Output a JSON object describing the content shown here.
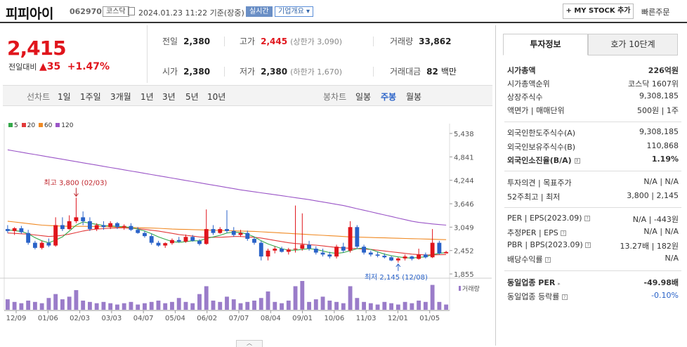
{
  "header": {
    "title": "피피아이",
    "code": "062970",
    "market": "코스닥",
    "datetime": "2024.01.23 11:22 기준(장중)",
    "realtime_tag": "실시간",
    "company_tag": "기업개요",
    "mystock_label": "+ MY STOCK 추가",
    "quick_order": "빠른주문"
  },
  "price": {
    "current": "2,415",
    "change_label": "전일대비",
    "change": "35",
    "change_pct": "+1.47%"
  },
  "stats": {
    "prev_label": "전일",
    "prev": "2,380",
    "high_label": "고가",
    "high": "2,445",
    "upper_limit": "(상한가 3,090)",
    "volume_label": "거래량",
    "volume": "33,862",
    "open_label": "시가",
    "open": "2,380",
    "low_label": "저가",
    "low": "2,380",
    "lower_limit": "(하한가 1,670)",
    "amount_label": "거래대금",
    "amount": "82",
    "amount_unit": "백만"
  },
  "period_bar": {
    "line_label": "선차트",
    "line_periods": [
      "1일",
      "1주일",
      "3개월",
      "1년",
      "3년",
      "5년",
      "10년"
    ],
    "candle_label": "봉차트",
    "candle_periods": [
      "일봉",
      "주봉",
      "월봉"
    ],
    "selected": "주봉"
  },
  "chart_data": {
    "type": "candlestick",
    "legend": [
      "5",
      "20",
      "60",
      "120"
    ],
    "ma_colors": {
      "5": "#35a84a",
      "20": "#e23a3a",
      "60": "#f08a24",
      "120": "#9a55c7"
    },
    "up_color": "#e0151c",
    "down_color": "#2962c8",
    "y_ticks": [
      "5,438",
      "4,841",
      "4,244",
      "3,646",
      "3,049",
      "2,452",
      "1,855"
    ],
    "ylim": [
      1855,
      5438
    ],
    "x_ticks": [
      "12/09",
      "01/06",
      "02/03",
      "03/03",
      "04/07",
      "05/04",
      "06/02",
      "07/07",
      "08/04",
      "09/01",
      "10/06",
      "11/03",
      "12/01",
      "01/05"
    ],
    "annotation_high": "최고 3,800 (02/03)",
    "annotation_low": "최저 2,145 (12/08)",
    "volume_label": "거래량",
    "candles": [
      {
        "o": 3000,
        "h": 3100,
        "l": 2900,
        "c": 2950
      },
      {
        "o": 2950,
        "h": 3050,
        "l": 2850,
        "c": 3020
      },
      {
        "o": 3020,
        "h": 3080,
        "l": 2880,
        "c": 2920
      },
      {
        "o": 2900,
        "h": 2980,
        "l": 2600,
        "c": 2650
      },
      {
        "o": 2650,
        "h": 2700,
        "l": 2480,
        "c": 2520
      },
      {
        "o": 2520,
        "h": 2700,
        "l": 2480,
        "c": 2650
      },
      {
        "o": 2650,
        "h": 2760,
        "l": 2540,
        "c": 2580
      },
      {
        "o": 2580,
        "h": 3300,
        "l": 2550,
        "c": 3100
      },
      {
        "o": 3100,
        "h": 3300,
        "l": 2950,
        "c": 3000
      },
      {
        "o": 3000,
        "h": 3350,
        "l": 2980,
        "c": 3200
      },
      {
        "o": 3200,
        "h": 3800,
        "l": 3150,
        "c": 3300
      },
      {
        "o": 3300,
        "h": 3450,
        "l": 3100,
        "c": 3200
      },
      {
        "o": 3200,
        "h": 3300,
        "l": 2950,
        "c": 3000
      },
      {
        "o": 3000,
        "h": 3150,
        "l": 2950,
        "c": 3100
      },
      {
        "o": 3100,
        "h": 3200,
        "l": 2980,
        "c": 3050
      },
      {
        "o": 3050,
        "h": 3200,
        "l": 3000,
        "c": 3150
      },
      {
        "o": 3150,
        "h": 3180,
        "l": 3000,
        "c": 3050
      },
      {
        "o": 3050,
        "h": 3120,
        "l": 2980,
        "c": 3080
      },
      {
        "o": 3080,
        "h": 3150,
        "l": 2950,
        "c": 2980
      },
      {
        "o": 2980,
        "h": 3050,
        "l": 2880,
        "c": 2900
      },
      {
        "o": 2900,
        "h": 2950,
        "l": 2780,
        "c": 2820
      },
      {
        "o": 2820,
        "h": 2880,
        "l": 2600,
        "c": 2650
      },
      {
        "o": 2650,
        "h": 2700,
        "l": 2550,
        "c": 2580
      },
      {
        "o": 2580,
        "h": 2660,
        "l": 2520,
        "c": 2640
      },
      {
        "o": 2640,
        "h": 2760,
        "l": 2600,
        "c": 2720
      },
      {
        "o": 2720,
        "h": 2800,
        "l": 2650,
        "c": 2680
      },
      {
        "o": 2680,
        "h": 2860,
        "l": 2650,
        "c": 2800
      },
      {
        "o": 2800,
        "h": 2850,
        "l": 2680,
        "c": 2700
      },
      {
        "o": 2700,
        "h": 2740,
        "l": 2580,
        "c": 2620
      },
      {
        "o": 2620,
        "h": 3500,
        "l": 2600,
        "c": 3000
      },
      {
        "o": 3000,
        "h": 3100,
        "l": 2850,
        "c": 2900
      },
      {
        "o": 2900,
        "h": 3050,
        "l": 2880,
        "c": 3000
      },
      {
        "o": 3000,
        "h": 3480,
        "l": 2900,
        "c": 2950
      },
      {
        "o": 2950,
        "h": 3050,
        "l": 2800,
        "c": 2850
      },
      {
        "o": 2850,
        "h": 2980,
        "l": 2800,
        "c": 2900
      },
      {
        "o": 2900,
        "h": 2960,
        "l": 2700,
        "c": 2750
      },
      {
        "o": 2750,
        "h": 2800,
        "l": 2600,
        "c": 2650
      },
      {
        "o": 2650,
        "h": 2700,
        "l": 2200,
        "c": 2300
      },
      {
        "o": 2300,
        "h": 2500,
        "l": 2200,
        "c": 2450
      },
      {
        "o": 2450,
        "h": 2560,
        "l": 2380,
        "c": 2500
      },
      {
        "o": 2500,
        "h": 2550,
        "l": 2400,
        "c": 2420
      },
      {
        "o": 2420,
        "h": 2520,
        "l": 2350,
        "c": 2480
      },
      {
        "o": 2480,
        "h": 3600,
        "l": 2400,
        "c": 2500
      },
      {
        "o": 2500,
        "h": 3400,
        "l": 2450,
        "c": 2600
      },
      {
        "o": 2600,
        "h": 2700,
        "l": 2450,
        "c": 2500
      },
      {
        "o": 2500,
        "h": 2560,
        "l": 2350,
        "c": 2400
      },
      {
        "o": 2400,
        "h": 2500,
        "l": 2300,
        "c": 2350
      },
      {
        "o": 2350,
        "h": 2420,
        "l": 2250,
        "c": 2300
      },
      {
        "o": 2300,
        "h": 2600,
        "l": 2250,
        "c": 2550
      },
      {
        "o": 2550,
        "h": 2650,
        "l": 2400,
        "c": 2450
      },
      {
        "o": 2450,
        "h": 3200,
        "l": 2400,
        "c": 3050
      },
      {
        "o": 3050,
        "h": 3100,
        "l": 2500,
        "c": 2550
      },
      {
        "o": 2550,
        "h": 2600,
        "l": 2350,
        "c": 2400
      },
      {
        "o": 2400,
        "h": 2450,
        "l": 2300,
        "c": 2350
      },
      {
        "o": 2350,
        "h": 2420,
        "l": 2280,
        "c": 2320
      },
      {
        "o": 2320,
        "h": 2380,
        "l": 2250,
        "c": 2280
      },
      {
        "o": 2280,
        "h": 2320,
        "l": 2180,
        "c": 2200
      },
      {
        "o": 2200,
        "h": 2280,
        "l": 2145,
        "c": 2250
      },
      {
        "o": 2250,
        "h": 2350,
        "l": 2200,
        "c": 2300
      },
      {
        "o": 2300,
        "h": 2320,
        "l": 2200,
        "c": 2240
      },
      {
        "o": 2240,
        "h": 2500,
        "l": 2220,
        "c": 2350
      },
      {
        "o": 2350,
        "h": 2400,
        "l": 2250,
        "c": 2280
      },
      {
        "o": 2280,
        "h": 3000,
        "l": 2260,
        "c": 2650
      },
      {
        "o": 2650,
        "h": 2700,
        "l": 2350,
        "c": 2380
      },
      {
        "o": 2380,
        "h": 2445,
        "l": 2380,
        "c": 2415
      }
    ],
    "ma5": [
      2980,
      2960,
      2940,
      2880,
      2780,
      2700,
      2650,
      2720,
      2800,
      2950,
      3100,
      3180,
      3150,
      3120,
      3090,
      3080,
      3070,
      3060,
      3040,
      3000,
      2950,
      2880,
      2800,
      2740,
      2680,
      2660,
      2680,
      2700,
      2700,
      2760,
      2800,
      2840,
      2900,
      2920,
      2910,
      2870,
      2800,
      2700,
      2620,
      2560,
      2500,
      2460,
      2460,
      2480,
      2500,
      2480,
      2440,
      2400,
      2380,
      2400,
      2450,
      2500,
      2520,
      2480,
      2420,
      2360,
      2320,
      2290,
      2270,
      2260,
      2280,
      2290,
      2350,
      2380,
      2400
    ],
    "ma20": [
      2900,
      2890,
      2880,
      2870,
      2850,
      2830,
      2810,
      2820,
      2840,
      2870,
      2910,
      2950,
      2980,
      3000,
      3010,
      3020,
      3030,
      3030,
      3020,
      3010,
      2990,
      2970,
      2950,
      2920,
      2890,
      2860,
      2840,
      2820,
      2800,
      2790,
      2790,
      2790,
      2800,
      2810,
      2810,
      2800,
      2790,
      2770,
      2740,
      2710,
      2680,
      2650,
      2630,
      2620,
      2600,
      2590,
      2570,
      2550,
      2530,
      2520,
      2510,
      2500,
      2490,
      2480,
      2460,
      2440,
      2420,
      2400,
      2380,
      2360,
      2350,
      2340,
      2340,
      2345,
      2350
    ],
    "ma60": [
      3200,
      3180,
      3160,
      3140,
      3120,
      3100,
      3090,
      3080,
      3075,
      3070,
      3070,
      3070,
      3068,
      3065,
      3060,
      3055,
      3050,
      3045,
      3040,
      3035,
      3030,
      3025,
      3020,
      3010,
      3000,
      2995,
      2990,
      2985,
      2980,
      2975,
      2970,
      2965,
      2960,
      2955,
      2950,
      2945,
      2940,
      2930,
      2920,
      2910,
      2900,
      2890,
      2880,
      2870,
      2860,
      2850,
      2840,
      2830,
      2820,
      2810,
      2800,
      2795,
      2790,
      2785,
      2780,
      2775,
      2770,
      2765,
      2760,
      2755,
      2750,
      2745,
      2740,
      2735,
      2730
    ],
    "ma120": [
      5020,
      4990,
      4960,
      4930,
      4900,
      4870,
      4840,
      4810,
      4780,
      4750,
      4720,
      4690,
      4660,
      4630,
      4600,
      4570,
      4540,
      4510,
      4480,
      4450,
      4420,
      4390,
      4360,
      4330,
      4300,
      4270,
      4240,
      4210,
      4180,
      4150,
      4120,
      4090,
      4060,
      4030,
      4000,
      3975,
      3950,
      3925,
      3900,
      3875,
      3850,
      3825,
      3800,
      3775,
      3750,
      3720,
      3690,
      3660,
      3630,
      3600,
      3560,
      3520,
      3480,
      3440,
      3400,
      3360,
      3320,
      3280,
      3240,
      3200,
      3170,
      3150,
      3130,
      3115,
      3100
    ],
    "volumes": [
      8,
      6,
      5,
      7,
      6,
      5,
      9,
      12,
      8,
      10,
      15,
      7,
      6,
      5,
      6,
      5,
      4,
      5,
      6,
      4,
      5,
      6,
      7,
      5,
      6,
      9,
      6,
      5,
      12,
      18,
      7,
      6,
      10,
      8,
      5,
      6,
      7,
      9,
      14,
      6,
      5,
      7,
      18,
      22,
      6,
      8,
      10,
      7,
      6,
      5,
      18,
      9,
      6,
      5,
      4,
      6,
      5,
      4,
      6,
      5,
      7,
      6,
      19,
      6,
      4
    ]
  },
  "side": {
    "tab_active": "투자정보",
    "tab_other": "호가 10단계",
    "market_cap_label": "시가총액",
    "market_cap": "226억원",
    "rank_label": "시가총액순위",
    "rank": "코스닥 1607위",
    "shares_label": "상장주식수",
    "shares": "9,308,185",
    "par_label": "액면가",
    "unit_label": "매매단위",
    "par": "500원",
    "unit": "1주",
    "foreign_limit_label": "외국인한도주식수(A)",
    "foreign_limit": "9,308,185",
    "foreign_hold_label": "외국인보유주식수(B)",
    "foreign_hold": "110,868",
    "foreign_rate_label": "외국인소진율(B/A)",
    "foreign_rate": "1.19%",
    "opinion_label": "투자의견",
    "target_label": "목표주가",
    "opinion": "N/A",
    "target": "N/A",
    "w52_high_label": "52주최고",
    "w52_low_label": "최저",
    "w52_high": "3,800",
    "w52_low": "2,145",
    "per_label": "PER",
    "eps_label": "EPS(2023.09)",
    "per": "N/A",
    "eps": "-443원",
    "est_per_label": "추정PER",
    "est_eps_label": "EPS",
    "est_per": "N/A",
    "est_eps": "N/A",
    "pbr_label": "PBR",
    "bps_label": "BPS(2023.09)",
    "pbr": "13.27배",
    "bps": "182원",
    "div_label": "배당수익률",
    "div": "N/A",
    "ind_per_label": "동일업종 PER",
    "ind_per": "-49.98배",
    "ind_rate_label": "동일업종 등락률",
    "ind_rate": "-0.10%"
  }
}
